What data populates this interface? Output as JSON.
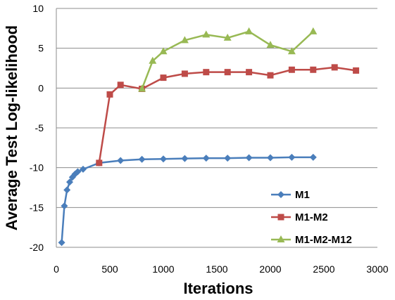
{
  "chart_data": {
    "type": "line",
    "xlabel": "Iterations",
    "ylabel": "Average Test Log-likelihood",
    "xlim": [
      0,
      3000
    ],
    "ylim": [
      -20,
      10
    ],
    "x_ticks": [
      "0",
      "500",
      "1000",
      "1500",
      "2000",
      "2500",
      "3000"
    ],
    "y_ticks": [
      "10",
      "5",
      "0",
      "-5",
      "-10",
      "-15",
      "-20"
    ],
    "grid": "horizontal",
    "legend_position": "bottom-right",
    "series": [
      {
        "name": "M1",
        "color": "#4a7ebb",
        "marker": "diamond",
        "x": [
          50,
          75,
          100,
          125,
          150,
          175,
          200,
          250,
          400,
          600,
          800,
          1000,
          1200,
          1400,
          1600,
          1800,
          2000,
          2200,
          2400
        ],
        "y": [
          -19.4,
          -14.8,
          -12.8,
          -11.8,
          -11.2,
          -10.8,
          -10.5,
          -10.2,
          -9.4,
          -9.1,
          -8.95,
          -8.9,
          -8.85,
          -8.8,
          -8.8,
          -8.75,
          -8.75,
          -8.7,
          -8.7
        ]
      },
      {
        "name": "M1-M2",
        "color": "#be4b48",
        "marker": "square",
        "x": [
          400,
          500,
          600,
          800,
          1000,
          1200,
          1400,
          1600,
          1800,
          2000,
          2200,
          2400,
          2600,
          2800
        ],
        "y": [
          -9.4,
          -0.8,
          0.4,
          -0.1,
          1.3,
          1.8,
          2.0,
          2.0,
          2.0,
          1.6,
          2.3,
          2.3,
          2.6,
          2.2
        ]
      },
      {
        "name": "M1-M2-M12",
        "color": "#98b954",
        "marker": "triangle",
        "x": [
          800,
          900,
          1000,
          1200,
          1400,
          1600,
          1800,
          2000,
          2200,
          2400
        ],
        "y": [
          -0.1,
          3.4,
          4.6,
          6.0,
          6.7,
          6.3,
          7.1,
          5.4,
          4.6,
          7.1
        ]
      }
    ]
  }
}
